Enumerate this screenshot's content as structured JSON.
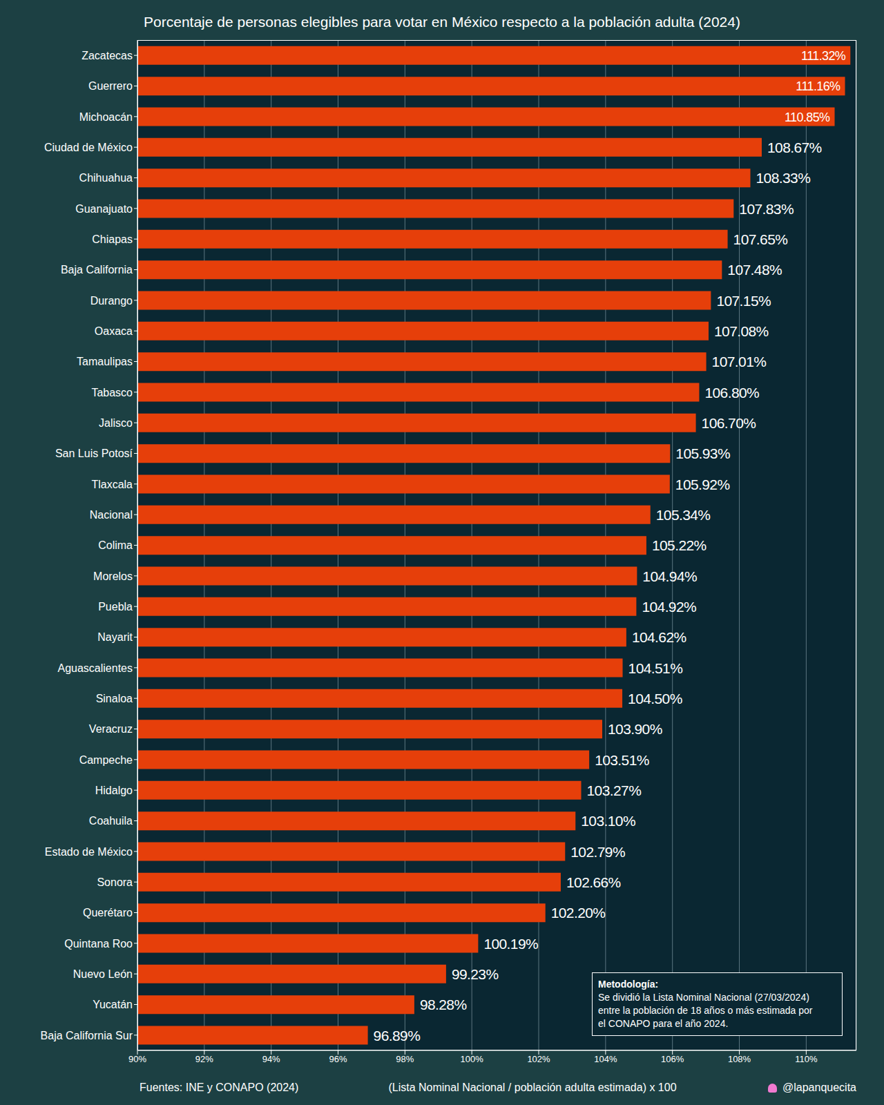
{
  "chart_data": {
    "type": "bar",
    "orientation": "horizontal",
    "title": "Porcentaje de personas elegibles para votar en México respecto a la población adulta (2024)",
    "xlabel": "(Lista Nominal Nacional / población adulta estimada) x 100",
    "source": "Fuentes: INE y CONAPO (2024)",
    "credit": "@lapanquecita",
    "annotation": {
      "title": "Metodología:",
      "lines": [
        "Se dividió la Lista Nominal Nacional (27/03/2024)",
        "entre la población de 18 años o más estimada por",
        "el CONAPO para el año 2024."
      ]
    },
    "categories": [
      "Zacatecas",
      "Guerrero",
      "Michoacán",
      "Ciudad de México",
      "Chihuahua",
      "Guanajuato",
      "Chiapas",
      "Baja California",
      "Durango",
      "Oaxaca",
      "Tamaulipas",
      "Tabasco",
      "Jalisco",
      "San Luis Potosí",
      "Tlaxcala",
      "Nacional",
      "Colima",
      "Morelos",
      "Puebla",
      "Nayarit",
      "Aguascalientes",
      "Sinaloa",
      "Veracruz",
      "Campeche",
      "Hidalgo",
      "Coahuila",
      "Estado de México",
      "Sonora",
      "Querétaro",
      "Quintana Roo",
      "Nuevo León",
      "Yucatán",
      "Baja California Sur"
    ],
    "values": [
      111.32,
      111.16,
      110.85,
      108.67,
      108.33,
      107.83,
      107.65,
      107.48,
      107.15,
      107.08,
      107.01,
      106.8,
      106.7,
      105.93,
      105.92,
      105.34,
      105.22,
      104.94,
      104.92,
      104.62,
      104.51,
      104.5,
      103.9,
      103.51,
      103.27,
      103.1,
      102.79,
      102.66,
      102.2,
      100.19,
      99.23,
      98.28,
      96.89
    ],
    "value_labels": [
      "111.32%",
      "111.16%",
      "110.85%",
      "108.67%",
      "108.33%",
      "107.83%",
      "107.65%",
      "107.48%",
      "107.15%",
      "107.08%",
      "107.01%",
      "106.80%",
      "106.70%",
      "105.93%",
      "105.92%",
      "105.34%",
      "105.22%",
      "104.94%",
      "104.92%",
      "104.62%",
      "104.51%",
      "104.50%",
      "103.90%",
      "103.51%",
      "103.27%",
      "103.10%",
      "102.79%",
      "102.66%",
      "102.20%",
      "100.19%",
      "99.23%",
      "98.28%",
      "96.89%"
    ],
    "data_labels": true,
    "color": "#e63f0a",
    "xlim": [
      90,
      111.5
    ],
    "xticks": [
      {
        "value": 90,
        "label": "90%"
      },
      {
        "value": 92,
        "label": "92%"
      },
      {
        "value": 94,
        "label": "94%"
      },
      {
        "value": 96,
        "label": "96%"
      },
      {
        "value": 98,
        "label": "98%"
      },
      {
        "value": 100,
        "label": "100%"
      },
      {
        "value": 102,
        "label": "102%"
      },
      {
        "value": 104,
        "label": "104%"
      },
      {
        "value": 106,
        "label": "106%"
      },
      {
        "value": 108,
        "label": "108%"
      },
      {
        "value": 110,
        "label": "110%"
      }
    ],
    "grid": true
  }
}
